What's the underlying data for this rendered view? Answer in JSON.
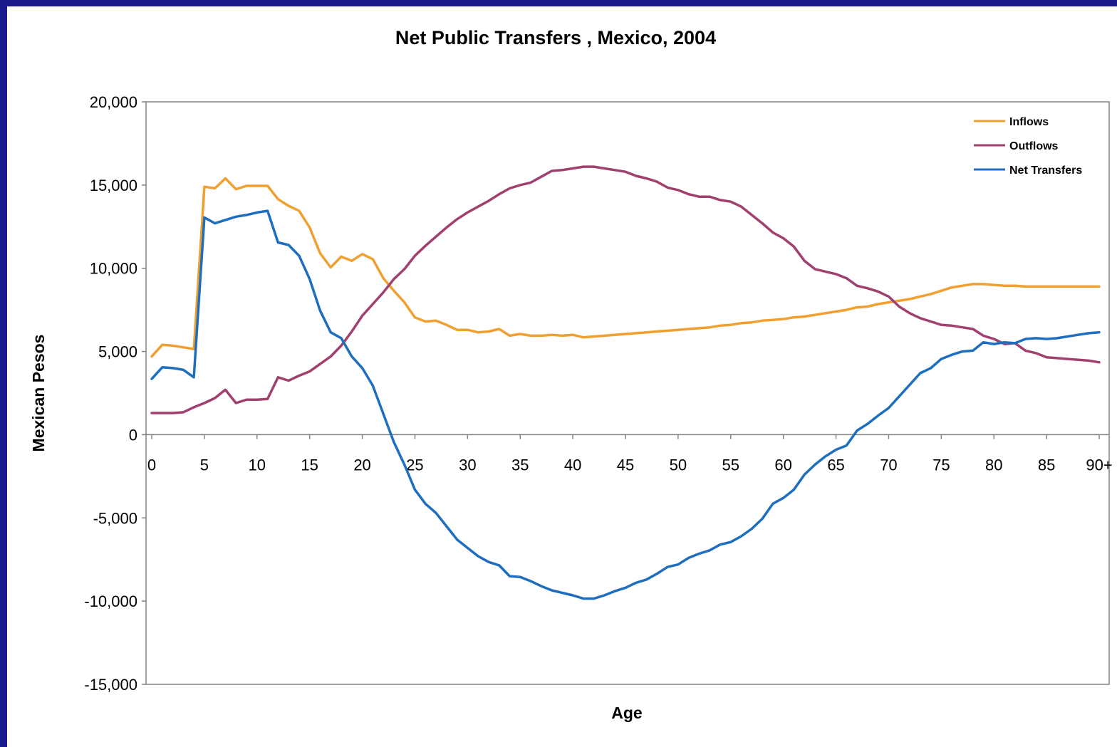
{
  "chart_data": {
    "type": "line",
    "title": "Net Public Transfers , Mexico, 2004",
    "xlabel": "Age",
    "ylabel": "Mexican Pesos",
    "x_tick_labels": [
      "0",
      "5",
      "10",
      "15",
      "20",
      "25",
      "30",
      "35",
      "40",
      "45",
      "50",
      "55",
      "60",
      "65",
      "70",
      "75",
      "80",
      "85",
      "90+"
    ],
    "y_tick_labels": [
      "20,000",
      "15,000",
      "10,000",
      "5,000",
      "0",
      "-5,000",
      "-10,000",
      "-15,000"
    ],
    "xlim": [
      0,
      90
    ],
    "ylim": [
      -15000,
      20000
    ],
    "legend_position": "top-right",
    "x": [
      0,
      1,
      2,
      3,
      4,
      5,
      6,
      7,
      8,
      9,
      10,
      11,
      12,
      13,
      14,
      15,
      16,
      17,
      18,
      19,
      20,
      21,
      22,
      23,
      24,
      25,
      26,
      27,
      28,
      29,
      30,
      31,
      32,
      33,
      34,
      35,
      36,
      37,
      38,
      39,
      40,
      41,
      42,
      43,
      44,
      45,
      46,
      47,
      48,
      49,
      50,
      51,
      52,
      53,
      54,
      55,
      56,
      57,
      58,
      59,
      60,
      61,
      62,
      63,
      64,
      65,
      66,
      67,
      68,
      69,
      70,
      71,
      72,
      73,
      74,
      75,
      76,
      77,
      78,
      79,
      80,
      81,
      82,
      83,
      84,
      85,
      86,
      87,
      88,
      89,
      90
    ],
    "series": [
      {
        "name": "Inflows",
        "color": "#f0a030",
        "values": [
          4700,
          5400,
          5350,
          5250,
          5150,
          14900,
          14800,
          15400,
          14750,
          14950,
          14950,
          14950,
          14150,
          13750,
          13450,
          12450,
          10900,
          10050,
          10700,
          10450,
          10850,
          10550,
          9400,
          8650,
          7950,
          7050,
          6800,
          6850,
          6600,
          6300,
          6300,
          6150,
          6200,
          6350,
          5950,
          6050,
          5950,
          5950,
          6000,
          5950,
          6000,
          5850,
          5900,
          5950,
          6000,
          6050,
          6100,
          6150,
          6200,
          6250,
          6300,
          6350,
          6400,
          6450,
          6550,
          6600,
          6700,
          6750,
          6850,
          6900,
          6950,
          7050,
          7100,
          7200,
          7300,
          7400,
          7500,
          7650,
          7700,
          7850,
          7950,
          8050,
          8150,
          8300,
          8450,
          8650,
          8850,
          8950,
          9050,
          9050,
          9000,
          8950,
          8950,
          8900,
          8900,
          8900,
          8900,
          8900,
          8900,
          8900,
          8900
        ]
      },
      {
        "name": "Outflows",
        "color": "#a0406e",
        "values": [
          1300,
          1300,
          1300,
          1350,
          1650,
          1900,
          2200,
          2700,
          1900,
          2100,
          2100,
          2150,
          3450,
          3250,
          3550,
          3800,
          4250,
          4700,
          5350,
          6200,
          7150,
          7850,
          8550,
          9350,
          9950,
          10750,
          11350,
          11900,
          12450,
          12950,
          13350,
          13700,
          14050,
          14450,
          14800,
          15000,
          15150,
          15500,
          15850,
          15900,
          16000,
          16100,
          16100,
          16000,
          15900,
          15800,
          15550,
          15400,
          15200,
          14850,
          14700,
          14450,
          14300,
          14300,
          14100,
          14000,
          13700,
          13200,
          12700,
          12150,
          11800,
          11300,
          10450,
          9950,
          9800,
          9650,
          9400,
          8950,
          8800,
          8600,
          8300,
          7700,
          7300,
          7000,
          6800,
          6600,
          6550,
          6450,
          6350,
          5950,
          5750,
          5450,
          5500,
          5050,
          4900,
          4650,
          4600,
          4550,
          4500,
          4450,
          4350
        ]
      },
      {
        "name": "Net Transfers",
        "color": "#1e6ec0",
        "values": [
          3350,
          4050,
          4000,
          3900,
          3450,
          13050,
          12700,
          12900,
          13100,
          13200,
          13350,
          13450,
          11550,
          11400,
          10750,
          9350,
          7450,
          6150,
          5800,
          4700,
          4000,
          2950,
          1250,
          -450,
          -1800,
          -3300,
          -4150,
          -4700,
          -5500,
          -6300,
          -6800,
          -7300,
          -7650,
          -7850,
          -8500,
          -8550,
          -8800,
          -9100,
          -9350,
          -9500,
          -9650,
          -9850,
          -9850,
          -9650,
          -9400,
          -9200,
          -8900,
          -8700,
          -8350,
          -7950,
          -7800,
          -7400,
          -7150,
          -6950,
          -6600,
          -6450,
          -6100,
          -5650,
          -5050,
          -4150,
          -3800,
          -3300,
          -2400,
          -1800,
          -1300,
          -900,
          -650,
          250,
          650,
          1150,
          1600,
          2300,
          3000,
          3700,
          4000,
          4550,
          4800,
          5000,
          5050,
          5550,
          5450,
          5550,
          5500,
          5750,
          5800,
          5750,
          5800,
          5900,
          6000,
          6100,
          6150
        ]
      }
    ]
  }
}
